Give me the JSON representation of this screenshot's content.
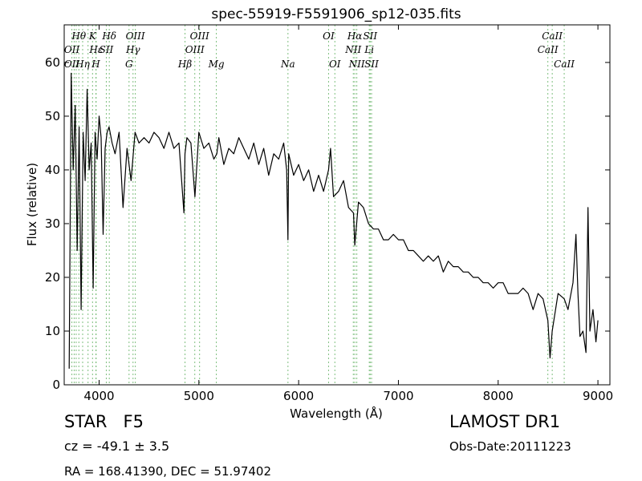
{
  "chart_data": {
    "type": "line",
    "title": "spec-55919-F5591906_sp12-035.fits",
    "xlabel": "Wavelength (Å)",
    "ylabel": "Flux (relative)",
    "xlim": [
      3650,
      9120
    ],
    "ylim": [
      0,
      67
    ],
    "xticks": [
      4000,
      5000,
      6000,
      7000,
      8000,
      9000
    ],
    "yticks": [
      0,
      10,
      20,
      30,
      40,
      50,
      60
    ],
    "grid": false,
    "line_color": "#000000",
    "marker_color": "#7fbf7f",
    "series": [
      {
        "x": [
          3700,
          3720,
          3740,
          3760,
          3780,
          3800,
          3820,
          3840,
          3860,
          3880,
          3900,
          3920,
          3940,
          3960,
          3980,
          4000,
          4020,
          4040,
          4060,
          4080,
          4100,
          4130,
          4160,
          4200,
          4240,
          4280,
          4320,
          4360,
          4400,
          4450,
          4500,
          4550,
          4600,
          4650,
          4700,
          4750,
          4800,
          4850,
          4861,
          4880,
          4920,
          4960,
          5000,
          5050,
          5100,
          5150,
          5180,
          5200,
          5250,
          5300,
          5350,
          5400,
          5450,
          5500,
          5550,
          5600,
          5650,
          5700,
          5750,
          5800,
          5850,
          5880,
          5893,
          5900,
          5950,
          6000,
          6050,
          6100,
          6150,
          6200,
          6250,
          6300,
          6320,
          6350,
          6400,
          6450,
          6500,
          6550,
          6563,
          6600,
          6650,
          6700,
          6750,
          6800,
          6850,
          6900,
          6950,
          7000,
          7050,
          7100,
          7150,
          7200,
          7250,
          7300,
          7350,
          7400,
          7450,
          7500,
          7550,
          7600,
          7650,
          7700,
          7750,
          7800,
          7850,
          7900,
          7950,
          8000,
          8050,
          8100,
          8150,
          8200,
          8250,
          8300,
          8350,
          8400,
          8450,
          8498,
          8520,
          8542,
          8600,
          8662,
          8700,
          8750,
          8780,
          8800,
          8820,
          8850,
          8880,
          8900,
          8920,
          8950,
          8980,
          9000
        ],
        "y": [
          3,
          58,
          40,
          52,
          25,
          48,
          14,
          47,
          38,
          55,
          40,
          45,
          18,
          47,
          42,
          50,
          46,
          28,
          44,
          47,
          48,
          45,
          43,
          47,
          33,
          44,
          38,
          47,
          45,
          46,
          45,
          47,
          46,
          44,
          47,
          44,
          45,
          32,
          43,
          46,
          45,
          35,
          47,
          44,
          45,
          42,
          43,
          46,
          41,
          44,
          43,
          46,
          44,
          42,
          45,
          41,
          44,
          39,
          43,
          42,
          45,
          40,
          27,
          43,
          39,
          41,
          38,
          40,
          36,
          39,
          36,
          40,
          44,
          35,
          36,
          38,
          33,
          32,
          26,
          34,
          33,
          30,
          29,
          29,
          27,
          27,
          28,
          27,
          27,
          25,
          25,
          24,
          23,
          24,
          23,
          24,
          21,
          23,
          22,
          22,
          21,
          21,
          20,
          20,
          19,
          19,
          18,
          19,
          19,
          17,
          17,
          17,
          18,
          17,
          14,
          17,
          16,
          12,
          5,
          10,
          17,
          16,
          14,
          19,
          28,
          17,
          9,
          10,
          6,
          33,
          10,
          14,
          8,
          12
        ]
      }
    ],
    "annotations": {
      "top_row": [
        {
          "text": "Hθ",
          "x": 3797
        },
        {
          "text": "K",
          "x": 3934
        },
        {
          "text": "Hδ",
          "x": 4102
        },
        {
          "text": "OIII",
          "x": 4363
        },
        {
          "text": "OIII",
          "x": 5007
        },
        {
          "text": "OI",
          "x": 6300
        },
        {
          "text": "Hα",
          "x": 6563
        },
        {
          "text": "SII",
          "x": 6717
        },
        {
          "text": "CaII",
          "x": 8542
        }
      ],
      "mid_row": [
        {
          "text": "OII",
          "x": 3727
        },
        {
          "text": "Hε",
          "x": 3970
        },
        {
          "text": "SII",
          "x": 4072
        },
        {
          "text": "Hγ",
          "x": 4340
        },
        {
          "text": "OIII",
          "x": 4959
        },
        {
          "text": "NII",
          "x": 6548
        },
        {
          "text": "Li",
          "x": 6708
        },
        {
          "text": "CaII",
          "x": 8498
        }
      ],
      "low_row": [
        {
          "text": "OII",
          "x": 3727
        },
        {
          "text": "Hη",
          "x": 3835
        },
        {
          "text": "H",
          "x": 3968
        },
        {
          "text": "G",
          "x": 4300
        },
        {
          "text": "Hβ",
          "x": 4861
        },
        {
          "text": "Mg",
          "x": 5175
        },
        {
          "text": "Na",
          "x": 5893
        },
        {
          "text": "OI",
          "x": 6363
        },
        {
          "text": "NII",
          "x": 6583
        },
        {
          "text": "SII",
          "x": 6731
        },
        {
          "text": "CaII",
          "x": 8662
        }
      ],
      "line_positions": [
        3727,
        3750,
        3770,
        3797,
        3835,
        3889,
        3934,
        3968,
        3970,
        4072,
        4102,
        4300,
        4340,
        4363,
        4861,
        4959,
        5007,
        5175,
        5893,
        6300,
        6363,
        6548,
        6563,
        6583,
        6708,
        6717,
        6731,
        8498,
        8542,
        8662
      ]
    }
  },
  "info": {
    "class": "STAR",
    "subclass": "F5",
    "survey": "LAMOST DR1",
    "redshift": "cz = -49.1 ± 3.5",
    "obs_date": "Obs-Date:20111223",
    "coords": "RA = 168.41390, DEC = 51.97402"
  }
}
